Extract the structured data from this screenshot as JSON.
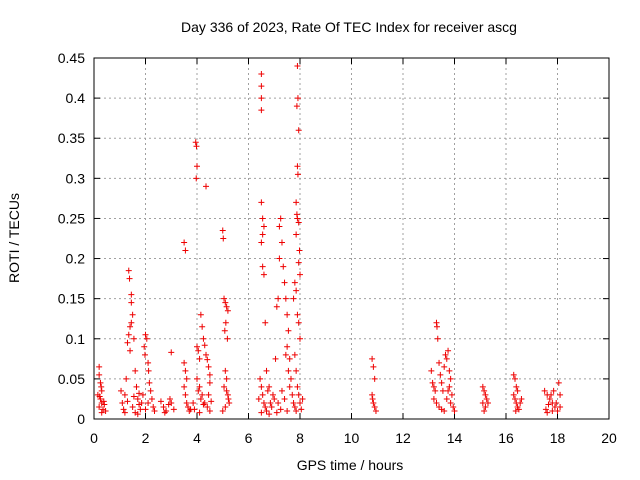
{
  "chart_data": {
    "type": "scatter",
    "title": "Day 336 of 2023, Rate Of TEC Index for receiver ascg",
    "xlabel": "GPS time / hours",
    "ylabel": "ROTI / TECUs",
    "xlim": [
      0,
      20
    ],
    "ylim": [
      0,
      0.45
    ],
    "xticks": [
      0,
      2,
      4,
      6,
      8,
      10,
      12,
      14,
      16,
      18,
      20
    ],
    "yticks": [
      0,
      0.05,
      0.1,
      0.15,
      0.2,
      0.25,
      0.3,
      0.35,
      0.4,
      0.45
    ],
    "grid": true,
    "marker": "+",
    "color": "#ee0000",
    "series": [
      {
        "name": "ROTI",
        "points": [
          [
            0.2,
            0.065
          ],
          [
            0.2,
            0.055
          ],
          [
            0.25,
            0.045
          ],
          [
            0.3,
            0.035
          ],
          [
            0.15,
            0.03
          ],
          [
            0.25,
            0.025
          ],
          [
            0.3,
            0.02
          ],
          [
            0.2,
            0.015
          ],
          [
            0.35,
            0.012
          ],
          [
            0.4,
            0.018
          ],
          [
            0.45,
            0.01
          ],
          [
            0.3,
            0.008
          ],
          [
            0.22,
            0.028
          ],
          [
            0.38,
            0.022
          ],
          [
            0.28,
            0.04
          ],
          [
            1.05,
            0.035
          ],
          [
            1.1,
            0.02
          ],
          [
            1.15,
            0.012
          ],
          [
            1.2,
            0.03
          ],
          [
            1.25,
            0.05
          ],
          [
            1.3,
            0.095
          ],
          [
            1.35,
            0.105
          ],
          [
            1.4,
            0.115
          ],
          [
            1.45,
            0.12
          ],
          [
            1.35,
            0.185
          ],
          [
            1.38,
            0.175
          ],
          [
            1.45,
            0.155
          ],
          [
            1.45,
            0.145
          ],
          [
            1.5,
            0.13
          ],
          [
            1.55,
            0.1
          ],
          [
            1.4,
            0.085
          ],
          [
            1.6,
            0.06
          ],
          [
            1.65,
            0.04
          ],
          [
            1.7,
            0.025
          ],
          [
            1.75,
            0.018
          ],
          [
            1.8,
            0.012
          ],
          [
            1.85,
            0.02
          ],
          [
            1.9,
            0.03
          ],
          [
            1.95,
            0.09
          ],
          [
            2.0,
            0.105
          ],
          [
            2.05,
            0.1
          ],
          [
            1.98,
            0.08
          ],
          [
            2.1,
            0.07
          ],
          [
            2.12,
            0.06
          ],
          [
            2.15,
            0.045
          ],
          [
            2.2,
            0.035
          ],
          [
            2.25,
            0.025
          ],
          [
            2.3,
            0.015
          ],
          [
            2.35,
            0.01
          ],
          [
            1.6,
            0.008
          ],
          [
            1.7,
            0.006
          ],
          [
            1.2,
            0.008
          ],
          [
            1.5,
            0.015
          ],
          [
            2.0,
            0.012
          ],
          [
            2.1,
            0.02
          ],
          [
            1.3,
            0.022
          ],
          [
            1.75,
            0.032
          ],
          [
            1.55,
            0.028
          ],
          [
            2.6,
            0.022
          ],
          [
            2.7,
            0.015
          ],
          [
            2.8,
            0.01
          ],
          [
            2.9,
            0.018
          ],
          [
            3.0,
            0.02
          ],
          [
            3.1,
            0.012
          ],
          [
            2.75,
            0.008
          ],
          [
            2.95,
            0.025
          ],
          [
            3.0,
            0.083
          ],
          [
            3.5,
            0.22
          ],
          [
            3.55,
            0.21
          ],
          [
            3.5,
            0.07
          ],
          [
            3.55,
            0.06
          ],
          [
            3.6,
            0.05
          ],
          [
            3.5,
            0.04
          ],
          [
            3.55,
            0.03
          ],
          [
            3.6,
            0.02
          ],
          [
            3.65,
            0.015
          ],
          [
            3.7,
            0.01
          ],
          [
            3.75,
            0.012
          ],
          [
            3.85,
            0.02
          ],
          [
            3.95,
            0.345
          ],
          [
            3.98,
            0.34
          ],
          [
            4.0,
            0.315
          ],
          [
            3.97,
            0.3
          ],
          [
            4.0,
            0.09
          ],
          [
            4.05,
            0.085
          ],
          [
            4.1,
            0.075
          ],
          [
            4.15,
            0.13
          ],
          [
            4.2,
            0.115
          ],
          [
            4.25,
            0.1
          ],
          [
            4.3,
            0.092
          ],
          [
            4.35,
            0.08
          ],
          [
            4.4,
            0.074
          ],
          [
            4.45,
            0.065
          ],
          [
            4.5,
            0.055
          ],
          [
            4.35,
            0.29
          ],
          [
            4.1,
            0.04
          ],
          [
            4.2,
            0.03
          ],
          [
            4.3,
            0.02
          ],
          [
            4.4,
            0.015
          ],
          [
            4.5,
            0.01
          ],
          [
            4.0,
            0.05
          ],
          [
            4.05,
            0.035
          ],
          [
            4.15,
            0.025
          ],
          [
            4.25,
            0.018
          ],
          [
            4.45,
            0.03
          ],
          [
            4.5,
            0.045
          ],
          [
            4.55,
            0.022
          ],
          [
            3.9,
            0.012
          ],
          [
            4.1,
            0.008
          ],
          [
            5.0,
            0.235
          ],
          [
            5.02,
            0.225
          ],
          [
            5.05,
            0.15
          ],
          [
            5.1,
            0.145
          ],
          [
            5.15,
            0.14
          ],
          [
            5.2,
            0.135
          ],
          [
            5.12,
            0.12
          ],
          [
            5.08,
            0.11
          ],
          [
            5.18,
            0.1
          ],
          [
            5.1,
            0.06
          ],
          [
            5.15,
            0.05
          ],
          [
            5.05,
            0.04
          ],
          [
            5.2,
            0.03
          ],
          [
            5.25,
            0.02
          ],
          [
            5.1,
            0.015
          ],
          [
            5.0,
            0.01
          ],
          [
            5.22,
            0.025
          ],
          [
            5.15,
            0.035
          ],
          [
            6.5,
            0.43
          ],
          [
            6.5,
            0.415
          ],
          [
            6.5,
            0.4
          ],
          [
            6.5,
            0.385
          ],
          [
            6.5,
            0.27
          ],
          [
            6.55,
            0.25
          ],
          [
            6.6,
            0.24
          ],
          [
            6.55,
            0.23
          ],
          [
            6.5,
            0.22
          ],
          [
            6.55,
            0.19
          ],
          [
            6.6,
            0.18
          ],
          [
            6.45,
            0.05
          ],
          [
            6.5,
            0.04
          ],
          [
            6.55,
            0.03
          ],
          [
            6.6,
            0.02
          ],
          [
            6.65,
            0.015
          ],
          [
            6.7,
            0.01
          ],
          [
            6.4,
            0.025
          ],
          [
            6.75,
            0.035
          ],
          [
            6.8,
            0.04
          ],
          [
            6.85,
            0.02
          ],
          [
            6.9,
            0.015
          ],
          [
            6.95,
            0.03
          ],
          [
            7.0,
            0.025
          ],
          [
            6.7,
            0.06
          ],
          [
            6.65,
            0.12
          ],
          [
            7.05,
            0.075
          ],
          [
            7.1,
            0.14
          ],
          [
            7.15,
            0.15
          ],
          [
            7.2,
            0.24
          ],
          [
            7.25,
            0.25
          ],
          [
            7.3,
            0.22
          ],
          [
            7.35,
            0.19
          ],
          [
            7.2,
            0.2
          ],
          [
            7.4,
            0.17
          ],
          [
            7.45,
            0.15
          ],
          [
            7.5,
            0.13
          ],
          [
            7.55,
            0.11
          ],
          [
            7.5,
            0.09
          ],
          [
            7.45,
            0.08
          ],
          [
            7.6,
            0.075
          ],
          [
            7.55,
            0.06
          ],
          [
            7.65,
            0.05
          ],
          [
            7.6,
            0.04
          ],
          [
            7.7,
            0.03
          ],
          [
            7.75,
            0.02
          ],
          [
            7.8,
            0.015
          ],
          [
            7.85,
            0.01
          ],
          [
            7.3,
            0.035
          ],
          [
            7.4,
            0.025
          ],
          [
            7.15,
            0.02
          ],
          [
            7.25,
            0.012
          ],
          [
            7.9,
            0.44
          ],
          [
            7.92,
            0.4
          ],
          [
            7.88,
            0.39
          ],
          [
            7.95,
            0.36
          ],
          [
            7.9,
            0.315
          ],
          [
            7.92,
            0.305
          ],
          [
            7.85,
            0.27
          ],
          [
            7.88,
            0.255
          ],
          [
            7.9,
            0.25
          ],
          [
            7.95,
            0.245
          ],
          [
            7.85,
            0.23
          ],
          [
            7.98,
            0.21
          ],
          [
            7.95,
            0.195
          ],
          [
            8.0,
            0.18
          ],
          [
            7.8,
            0.17
          ],
          [
            7.75,
            0.15
          ],
          [
            7.85,
            0.16
          ],
          [
            7.9,
            0.13
          ],
          [
            7.95,
            0.12
          ],
          [
            8.0,
            0.1
          ],
          [
            7.8,
            0.08
          ],
          [
            7.85,
            0.06
          ],
          [
            7.9,
            0.04
          ],
          [
            7.95,
            0.03
          ],
          [
            8.0,
            0.02
          ],
          [
            8.05,
            0.012
          ],
          [
            8.1,
            0.025
          ],
          [
            6.5,
            0.008
          ],
          [
            6.8,
            0.006
          ],
          [
            7.1,
            0.008
          ],
          [
            7.5,
            0.01
          ],
          [
            10.8,
            0.075
          ],
          [
            10.85,
            0.065
          ],
          [
            10.9,
            0.05
          ],
          [
            10.8,
            0.03
          ],
          [
            10.85,
            0.02
          ],
          [
            10.9,
            0.015
          ],
          [
            10.95,
            0.01
          ],
          [
            10.82,
            0.025
          ],
          [
            13.1,
            0.06
          ],
          [
            13.15,
            0.045
          ],
          [
            13.2,
            0.04
          ],
          [
            13.25,
            0.035
          ],
          [
            13.2,
            0.025
          ],
          [
            13.3,
            0.12
          ],
          [
            13.32,
            0.115
          ],
          [
            13.35,
            0.1
          ],
          [
            13.4,
            0.07
          ],
          [
            13.45,
            0.055
          ],
          [
            13.5,
            0.045
          ],
          [
            13.55,
            0.035
          ],
          [
            13.6,
            0.065
          ],
          [
            13.65,
            0.08
          ],
          [
            13.7,
            0.075
          ],
          [
            13.75,
            0.085
          ],
          [
            13.8,
            0.06
          ],
          [
            13.85,
            0.05
          ],
          [
            13.8,
            0.04
          ],
          [
            13.9,
            0.03
          ],
          [
            13.85,
            0.02
          ],
          [
            13.95,
            0.015
          ],
          [
            14.0,
            0.01
          ],
          [
            13.3,
            0.02
          ],
          [
            13.4,
            0.015
          ],
          [
            13.5,
            0.012
          ],
          [
            13.6,
            0.01
          ],
          [
            13.7,
            0.025
          ],
          [
            13.75,
            0.035
          ],
          [
            15.1,
            0.04
          ],
          [
            15.15,
            0.035
          ],
          [
            15.2,
            0.03
          ],
          [
            15.25,
            0.025
          ],
          [
            15.3,
            0.02
          ],
          [
            15.2,
            0.015
          ],
          [
            15.15,
            0.01
          ],
          [
            15.1,
            0.02
          ],
          [
            16.3,
            0.055
          ],
          [
            16.35,
            0.05
          ],
          [
            16.4,
            0.04
          ],
          [
            16.45,
            0.035
          ],
          [
            16.3,
            0.03
          ],
          [
            16.35,
            0.025
          ],
          [
            16.4,
            0.02
          ],
          [
            16.45,
            0.015
          ],
          [
            16.5,
            0.012
          ],
          [
            16.55,
            0.02
          ],
          [
            16.6,
            0.025
          ],
          [
            16.38,
            0.01
          ],
          [
            17.5,
            0.035
          ],
          [
            17.6,
            0.03
          ],
          [
            17.7,
            0.025
          ],
          [
            17.8,
            0.02
          ],
          [
            17.9,
            0.015
          ],
          [
            18.0,
            0.01
          ],
          [
            17.55,
            0.012
          ],
          [
            17.65,
            0.018
          ],
          [
            17.75,
            0.03
          ],
          [
            17.85,
            0.035
          ],
          [
            17.95,
            0.02
          ],
          [
            18.05,
            0.045
          ],
          [
            18.1,
            0.03
          ],
          [
            17.6,
            0.008
          ],
          [
            17.8,
            0.01
          ],
          [
            18.1,
            0.015
          ]
        ]
      }
    ]
  }
}
